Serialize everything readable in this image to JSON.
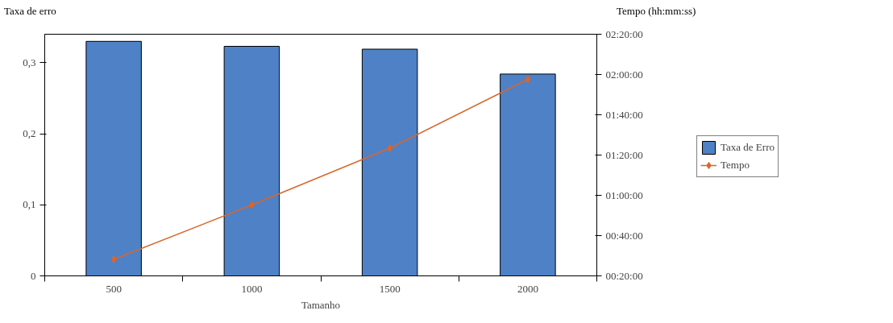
{
  "chart_data": {
    "type": "bar",
    "categories": [
      "500",
      "1000",
      "1500",
      "2000"
    ],
    "xlabel": "Tamanho",
    "ylabel": "Taxa de erro",
    "y2label": "Tempo (hh:mm:ss)",
    "series": [
      {
        "name": "Taxa de Erro",
        "color": "#4f81c7",
        "values": [
          0.33,
          0.323,
          0.319,
          0.284
        ]
      },
      {
        "name": "Tempo",
        "type": "line",
        "axis": "y2",
        "color": "#d9662a",
        "marker": "diamond",
        "values": [
          0.47,
          0.92,
          1.39,
          1.96
        ]
      }
    ],
    "ylim": [
      0,
      0.34
    ],
    "yticks": [
      {
        "value": 0,
        "label": "0"
      },
      {
        "value": 0.1,
        "label": "0,1"
      },
      {
        "value": 0.2,
        "label": "0,2"
      },
      {
        "value": 0.3,
        "label": "0,3"
      }
    ],
    "y2lim": [
      0.3333,
      2.3333
    ],
    "y2ticks": [
      {
        "value": 0.3333,
        "label": "00:20:00"
      },
      {
        "value": 0.6667,
        "label": "00:40:00"
      },
      {
        "value": 1,
        "label": "01:00:00"
      },
      {
        "value": 1.3333,
        "label": "01:20:00"
      },
      {
        "value": 1.6667,
        "label": "01:40:00"
      },
      {
        "value": 2,
        "label": "02:00:00"
      },
      {
        "value": 2.3333,
        "label": "02:20:00"
      }
    ],
    "grid": false,
    "legend": "right"
  }
}
